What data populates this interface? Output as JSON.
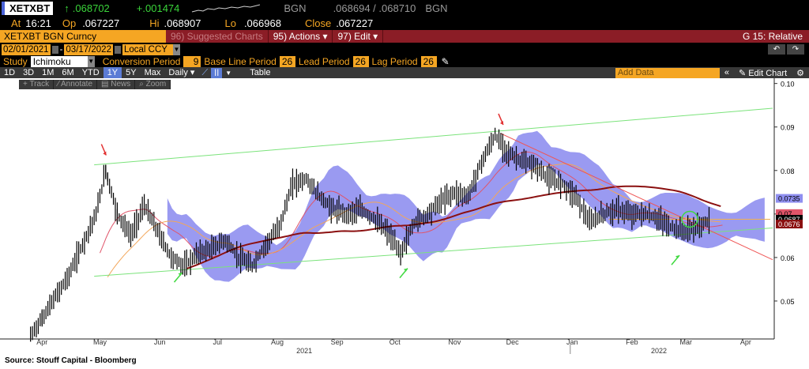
{
  "quote": {
    "ticker": "XETXBT",
    "arrow": "↑",
    "last": ".068702",
    "change": "+.001474",
    "source1": "BGN",
    "bid_ask": ".068694 / .068710",
    "source2": "BGN",
    "at_label": "At",
    "time": "16:21",
    "op_label": "Op",
    "open": ".067227",
    "hi_label": "Hi",
    "high": ".068907",
    "lo_label": "Lo",
    "low": ".066968",
    "close_label": "Close",
    "close": ".067227"
  },
  "titlebar": {
    "security": "XETXBT BGN Curncy",
    "suggested": "96) Suggested Charts",
    "actions": "95) Actions ▾",
    "edit": "97) Edit ▾",
    "function": "G 15: Relative"
  },
  "dates": {
    "start": "02/01/2021",
    "end": "03/17/2022",
    "currency": "Local CCY"
  },
  "study": {
    "label": "Study",
    "name": "Ichimoku",
    "params": [
      {
        "label": "Conversion Period",
        "value": "9"
      },
      {
        "label": "Base Line Period",
        "value": "26"
      },
      {
        "label": "Lead Period",
        "value": "26"
      },
      {
        "label": "Lag Period",
        "value": "26"
      }
    ]
  },
  "toolbar": {
    "periods": [
      "1D",
      "3D",
      "1M",
      "6M",
      "YTD",
      "1Y",
      "5Y",
      "Max"
    ],
    "active_period": "1Y",
    "frequency": "Daily ▾",
    "table": "Table",
    "add_data_placeholder": "Add Data",
    "edit_chart": "✎ Edit Chart"
  },
  "drawtools": [
    "+ Track",
    "⁄ Annotate",
    "▤ News",
    "⌕ Zoom"
  ],
  "colors": {
    "price": "#000000",
    "cloud": "#8f8ff0",
    "trend_green": "#7be37b",
    "trend_red": "#ef5555",
    "ma_red": "#e0556a",
    "ma_orange": "#f2a65a",
    "ma_dark": "#8b1010",
    "arrow_red": "#e23030",
    "arrow_green": "#3fd93f"
  },
  "chart_data": {
    "type": "line",
    "title": "",
    "y_ticks": [
      "0.10",
      "0.09",
      "0.08",
      "0.07",
      "0.06",
      "0.05"
    ],
    "ylim": [
      0.04,
      0.1
    ],
    "x_ticks": [
      "Apr",
      "May",
      "Jun",
      "Jul",
      "Aug",
      "Sep",
      "Oct",
      "Nov",
      "Dec",
      "Jan",
      "Feb",
      "Mar",
      "Apr"
    ],
    "year_labels": [
      "2021",
      "2022"
    ],
    "last_value_labels": [
      {
        "value": "0.0735",
        "color": "#8f8ff0"
      },
      {
        "value": "0.07",
        "color": "#e0556a"
      },
      {
        "value": "0.0687",
        "color": "#000000"
      },
      {
        "value": "0.0676",
        "color": "#8b1010"
      }
    ],
    "price_series": {
      "name": "XETXBT",
      "x": [
        "2021-03-26",
        "2021-04-01",
        "2021-04-08",
        "2021-04-15",
        "2021-04-22",
        "2021-04-29",
        "2021-05-04",
        "2021-05-10",
        "2021-05-17",
        "2021-05-24",
        "2021-05-31",
        "2021-06-07",
        "2021-06-14",
        "2021-06-21",
        "2021-06-28",
        "2021-07-05",
        "2021-07-12",
        "2021-07-19",
        "2021-07-26",
        "2021-08-02",
        "2021-08-09",
        "2021-08-16",
        "2021-08-23",
        "2021-08-30",
        "2021-09-06",
        "2021-09-13",
        "2021-09-20",
        "2021-09-27",
        "2021-10-04",
        "2021-10-11",
        "2021-10-18",
        "2021-10-25",
        "2021-11-01",
        "2021-11-08",
        "2021-11-15",
        "2021-11-22",
        "2021-11-29",
        "2021-12-06",
        "2021-12-13",
        "2021-12-20",
        "2021-12-27",
        "2022-01-03",
        "2022-01-10",
        "2022-01-17",
        "2022-01-24",
        "2022-01-31",
        "2022-02-07",
        "2022-02-14",
        "2022-02-21",
        "2022-02-28",
        "2022-03-07",
        "2022-03-14"
      ],
      "values": [
        0.042,
        0.046,
        0.051,
        0.056,
        0.063,
        0.07,
        0.08,
        0.07,
        0.065,
        0.072,
        0.066,
        0.06,
        0.058,
        0.061,
        0.062,
        0.064,
        0.06,
        0.058,
        0.063,
        0.067,
        0.077,
        0.078,
        0.074,
        0.071,
        0.07,
        0.071,
        0.069,
        0.066,
        0.061,
        0.068,
        0.07,
        0.073,
        0.075,
        0.074,
        0.082,
        0.088,
        0.084,
        0.082,
        0.081,
        0.078,
        0.077,
        0.074,
        0.068,
        0.07,
        0.071,
        0.07,
        0.07,
        0.069,
        0.067,
        0.066,
        0.067,
        0.0687
      ]
    },
    "annotations": [
      {
        "type": "arrow",
        "color": "red",
        "at": "2021-05-03",
        "value": 0.0835
      },
      {
        "type": "arrow",
        "color": "red",
        "at": "2021-11-25",
        "value": 0.0905
      },
      {
        "type": "arrow",
        "color": "green",
        "at": "2021-06-11",
        "value": 0.0565
      },
      {
        "type": "arrow",
        "color": "green",
        "at": "2021-10-06",
        "value": 0.0575
      },
      {
        "type": "arrow",
        "color": "green",
        "at": "2022-02-24",
        "value": 0.0605
      },
      {
        "type": "circle",
        "color": "green",
        "at": "2022-03-03",
        "value": 0.0688
      }
    ],
    "grid": false,
    "legend": "none"
  },
  "footer": {
    "source": "Source: Stouff Capital - Bloomberg"
  }
}
